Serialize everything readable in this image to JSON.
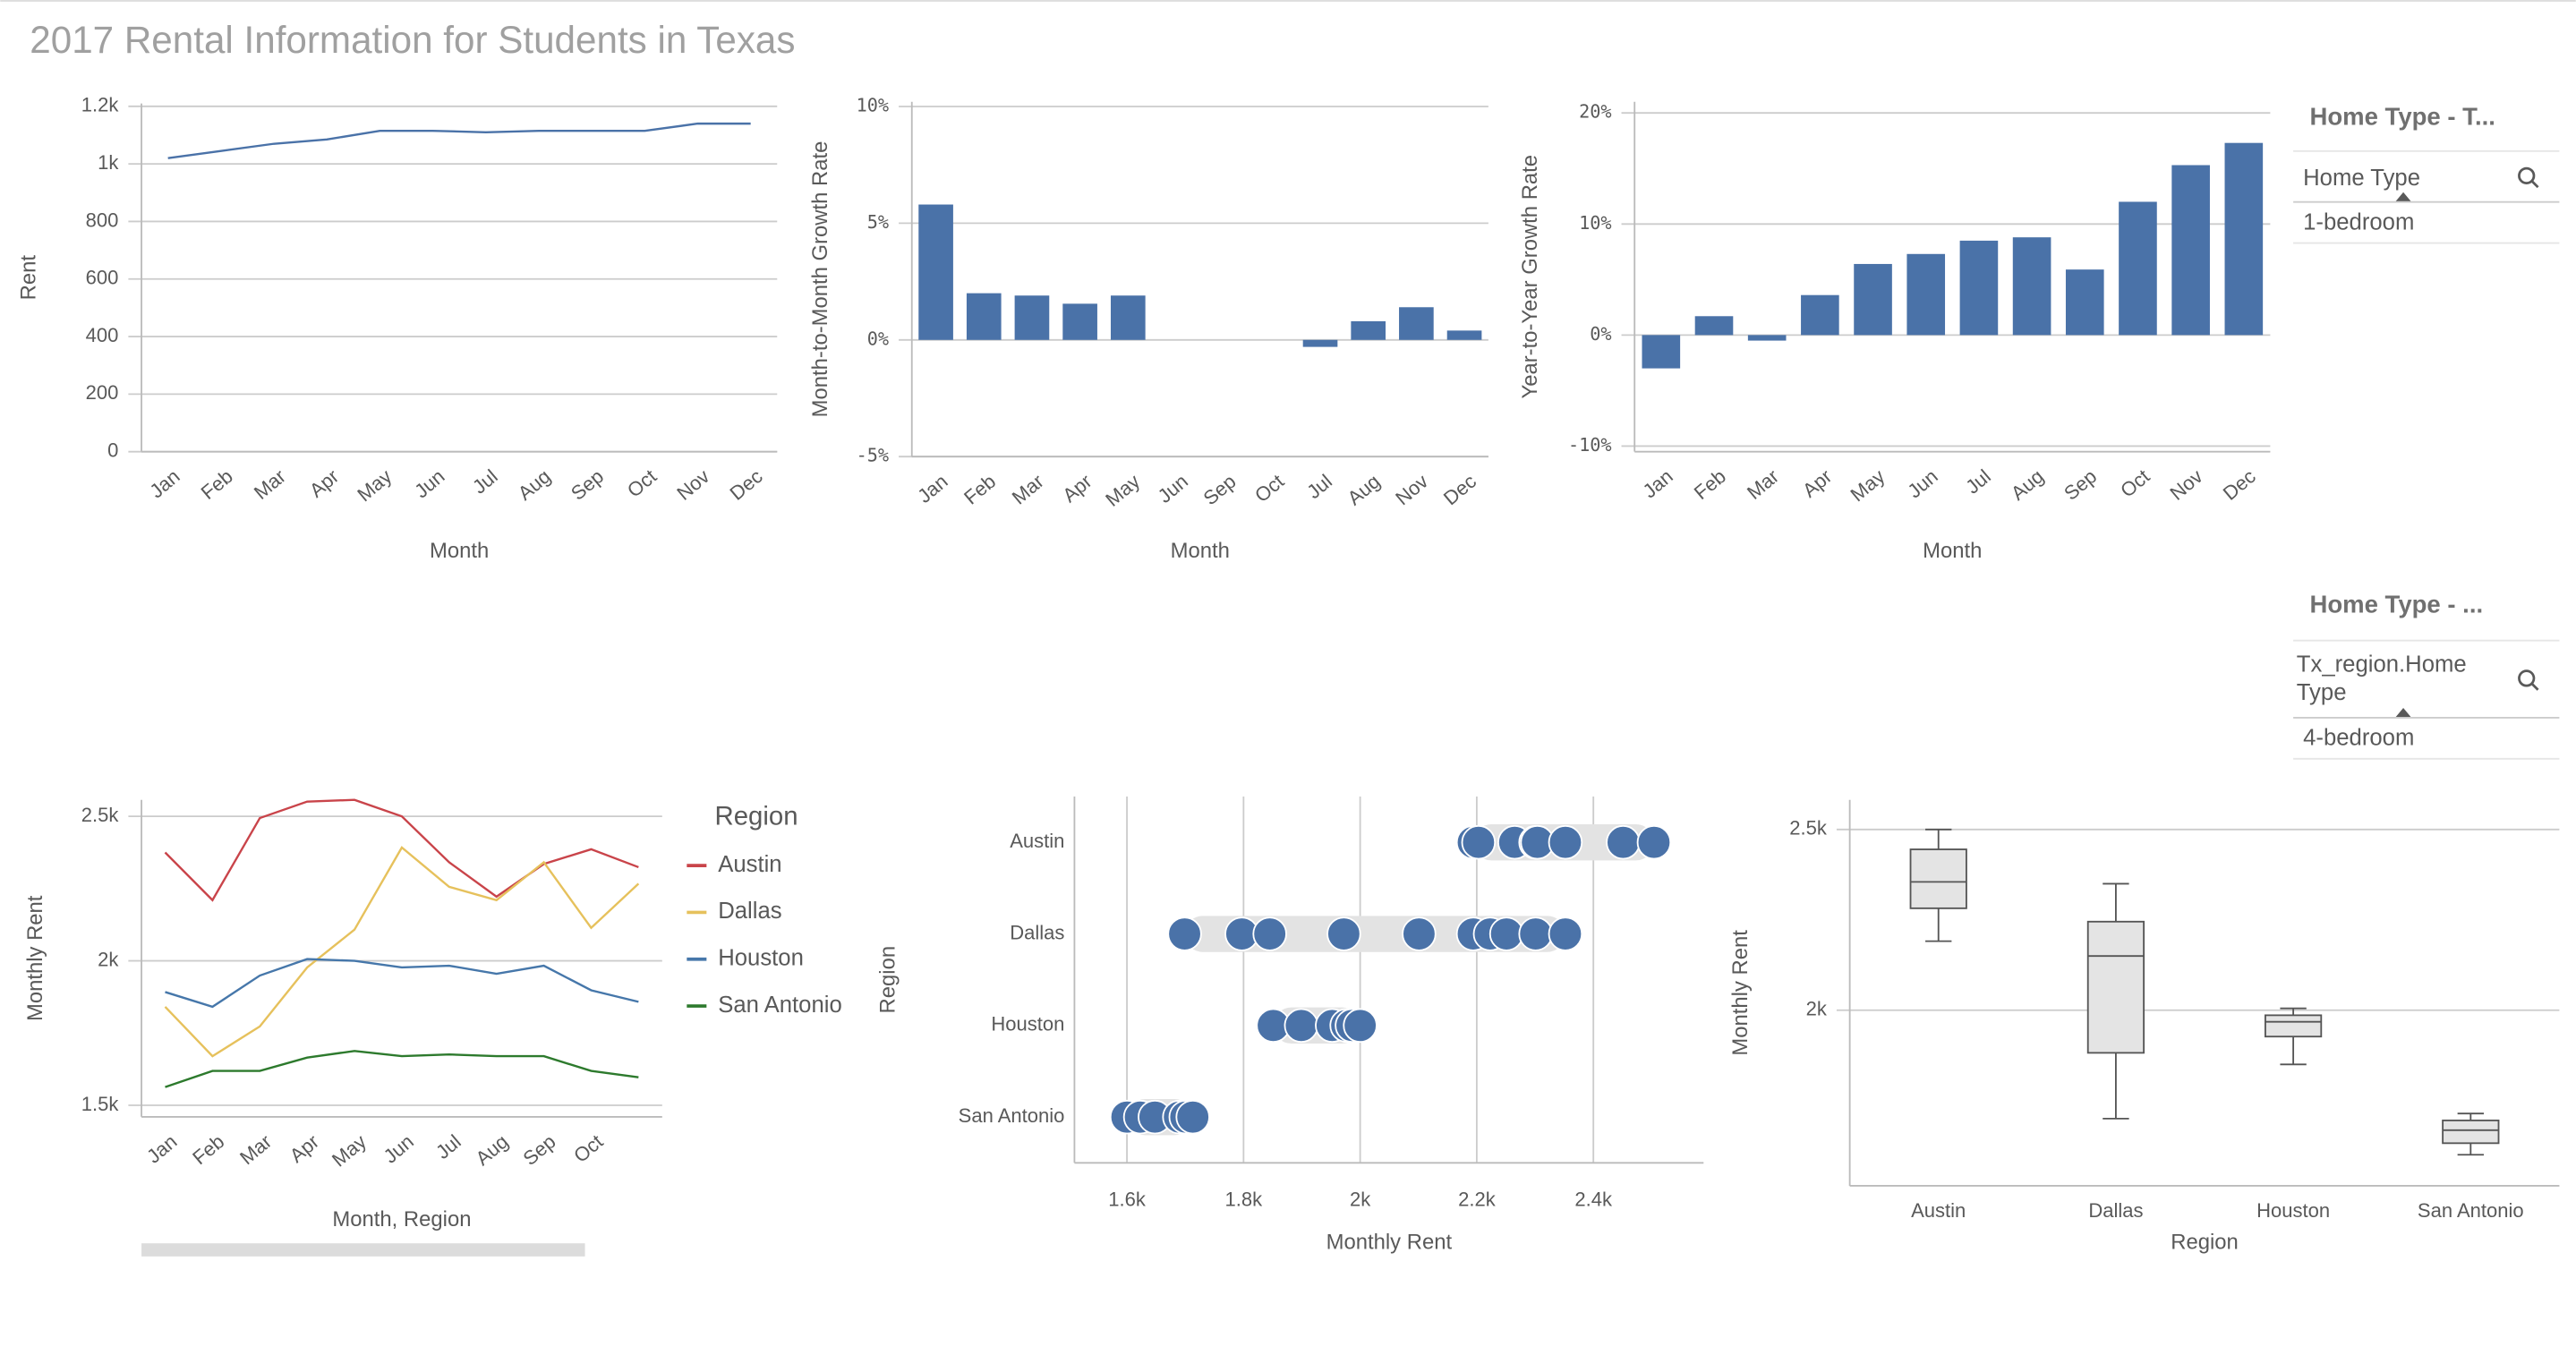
{
  "title": "2017 Rental Information for Students in Texas",
  "filters": [
    {
      "title": "Home Type - T...",
      "field": "Home Type",
      "value": "1-bedroom"
    },
    {
      "title": "Home Type - ...",
      "field": "Tx_region.Home Type",
      "value": "4-bedroom"
    }
  ],
  "chart_data": [
    {
      "type": "line",
      "x_label": "Month",
      "y_label": "Rent",
      "categories": [
        "Jan",
        "Feb",
        "Mar",
        "Apr",
        "May",
        "Jun",
        "Jul",
        "Aug",
        "Sep",
        "Oct",
        "Nov",
        "Dec"
      ],
      "values": [
        1020,
        1045,
        1070,
        1085,
        1115,
        1115,
        1110,
        1115,
        1115,
        1115,
        1140,
        1140
      ],
      "color": "#4a72a8",
      "ylim": [
        0,
        1210
      ],
      "yticks": [
        0,
        200,
        400,
        600,
        800,
        {
          "value": 1000,
          "label": "1k"
        },
        {
          "value": 1200,
          "label": "1.2k"
        }
      ],
      "grid": true
    },
    {
      "type": "bar",
      "x_label": "Month",
      "y_label": "Month-to-Month Growth Rate",
      "categories": [
        "Jan",
        "Feb",
        "Mar",
        "Apr",
        "May",
        "Jun",
        "Sep",
        "Oct",
        "Jul",
        "Aug",
        "Nov",
        "Dec"
      ],
      "values": [
        5.8,
        2.0,
        1.9,
        1.55,
        1.9,
        0,
        0,
        0,
        -0.3,
        0.8,
        1.4,
        0.4
      ],
      "color": "#4a72a8",
      "ylim": [
        -5,
        10.2
      ],
      "yticks": [
        {
          "value": -5,
          "label": "-5%"
        },
        {
          "value": 0,
          "label": "0%"
        },
        {
          "value": 5,
          "label": "5%"
        },
        {
          "value": 10,
          "label": "10%"
        }
      ],
      "grid": true
    },
    {
      "type": "bar",
      "x_label": "Month",
      "y_label": "Year-to-Year Growth Rate",
      "categories": [
        "Jan",
        "Feb",
        "Mar",
        "Apr",
        "May",
        "Jun",
        "Jul",
        "Aug",
        "Sep",
        "Oct",
        "Nov",
        "Dec"
      ],
      "values": [
        -3.0,
        1.7,
        -0.5,
        3.6,
        6.4,
        7.3,
        8.5,
        8.8,
        5.9,
        12,
        15.3,
        17.3
      ],
      "color": "#4a72a8",
      "ylim": [
        -10.5,
        21
      ],
      "yticks": [
        {
          "value": -10,
          "label": "-10%"
        },
        {
          "value": 0,
          "label": "0%"
        },
        {
          "value": 10,
          "label": "10%"
        },
        {
          "value": 20,
          "label": "20%"
        }
      ],
      "grid": true
    },
    {
      "type": "multiline",
      "x_label": "Month,  Region",
      "y_label": "Monthly Rent",
      "legend_title": "Region",
      "legend": "right",
      "categories": [
        "Jan",
        "Feb",
        "Mar",
        "Apr",
        "May",
        "Jun",
        "Jul",
        "Aug",
        "Sep",
        "Oct",
        null
      ],
      "series": [
        {
          "name": "Austin",
          "color": "#c9444a",
          "values": [
            2375,
            2210,
            2494,
            2551,
            2557,
            2500,
            2341,
            2222,
            2335,
            2386,
            2324
          ]
        },
        {
          "name": "Dallas",
          "color": "#e6c15c",
          "values": [
            1841,
            1670,
            1773,
            1977,
            2108,
            2392,
            2256,
            2210,
            2341,
            2114,
            2267
          ]
        },
        {
          "name": "Houston",
          "color": "#4677aa",
          "values": [
            1892,
            1841,
            1949,
            2006,
            2000,
            1977,
            1983,
            1955,
            1983,
            1898,
            1858
          ]
        },
        {
          "name": "San Antonio",
          "color": "#2d7a2d",
          "values": [
            1563,
            1619,
            1619,
            1665,
            1688,
            1670,
            1676,
            1670,
            1670,
            1619,
            1597
          ]
        }
      ],
      "ylim": [
        1460,
        2557
      ],
      "yticks": [
        {
          "value": 1500,
          "label": "1.5k"
        },
        {
          "value": 2000,
          "label": "2k"
        },
        {
          "value": 2500,
          "label": "2.5k"
        }
      ],
      "grid": true
    },
    {
      "type": "strip",
      "x_label": "Monthly Rent",
      "y_label": "Region",
      "categories": [
        "Austin",
        "Dallas",
        "Houston",
        "San Antonio"
      ],
      "values": [
        [
          2194,
          2203,
          2265,
          2301,
          2304,
          2352,
          2451,
          2504
        ],
        [
          1699,
          1797,
          1845,
          1972,
          2101,
          2194,
          2223,
          2251,
          2301,
          2352
        ],
        [
          1851,
          1899,
          1952,
          1977,
          1986,
          2000
        ],
        [
          1600,
          1623,
          1648,
          1690,
          1701,
          1713
        ]
      ],
      "color": "#4a72a8",
      "xlim": [
        1510,
        2589
      ],
      "xticks": [
        {
          "value": 1600,
          "label": "1.6k"
        },
        {
          "value": 1800,
          "label": "1.8k"
        },
        {
          "value": 2000,
          "label": "2k"
        },
        {
          "value": 2200,
          "label": "2.2k"
        },
        {
          "value": 2400,
          "label": "2.4k"
        }
      ],
      "grid": true
    },
    {
      "type": "box",
      "x_label": "Region",
      "y_label": "Monthly Rent",
      "categories": [
        "Austin",
        "Dallas",
        "Houston",
        "San Antonio"
      ],
      "min": [
        2191,
        1700,
        1850,
        1600
      ],
      "q1": [
        2282,
        1882,
        1927,
        1632
      ],
      "median": [
        2355,
        2150,
        1968,
        1668
      ],
      "q3": [
        2445,
        2245,
        1986,
        1695
      ],
      "max": [
        2500,
        2350,
        2005,
        1714
      ],
      "color": "#e4e4e4",
      "ylim": [
        1514,
        2582
      ],
      "yticks": [
        {
          "value": 2000,
          "label": "2k"
        },
        {
          "value": 2500,
          "label": "2.5k"
        }
      ],
      "grid": true
    }
  ]
}
